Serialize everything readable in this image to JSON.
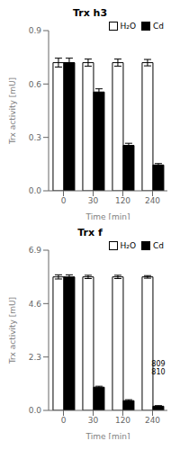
{
  "chart_data": [
    {
      "type": "bar",
      "title": "Trx h3",
      "xlabel": "Time [min]",
      "ylabel": "Trx activity [mU]",
      "categories": [
        "0",
        "30",
        "120",
        "240"
      ],
      "series": [
        {
          "name": "H₂O",
          "color": "white",
          "values": [
            0.72,
            0.72,
            0.72,
            0.72
          ],
          "errors": [
            0.025,
            0.02,
            0.02,
            0.018
          ]
        },
        {
          "name": "Cd",
          "color": "black",
          "values": [
            0.72,
            0.555,
            0.255,
            0.145
          ],
          "errors": [
            0.025,
            0.018,
            0.012,
            0.008
          ]
        }
      ],
      "ylim": [
        0,
        0.9
      ],
      "yticks": [
        {
          "value": 0,
          "label": "0.0"
        },
        0.3,
        0.6,
        0.9
      ],
      "legend": "upper right"
    },
    {
      "type": "bar",
      "title": "Trx f",
      "xlabel": "Time [min]",
      "ylabel": "Trx activity [mU]",
      "categories": [
        "0",
        "30",
        "120",
        "240"
      ],
      "series": [
        {
          "name": "H₂O",
          "color": "white",
          "values": [
            5.75,
            5.75,
            5.75,
            5.75
          ],
          "errors": [
            0.09,
            0.07,
            0.07,
            0.055
          ]
        },
        {
          "name": "Cd",
          "color": "black",
          "values": [
            5.75,
            1.0,
            0.42,
            0.18
          ],
          "errors": [
            0.09,
            0.04,
            0.04,
            0.025
          ]
        }
      ],
      "ylim": [
        0,
        6.9
      ],
      "yticks": [
        {
          "value": 0,
          "label": "0.0"
        },
        2.3,
        4.6,
        6.9
      ],
      "legend": "upper right",
      "annotation": "809\n810"
    }
  ]
}
